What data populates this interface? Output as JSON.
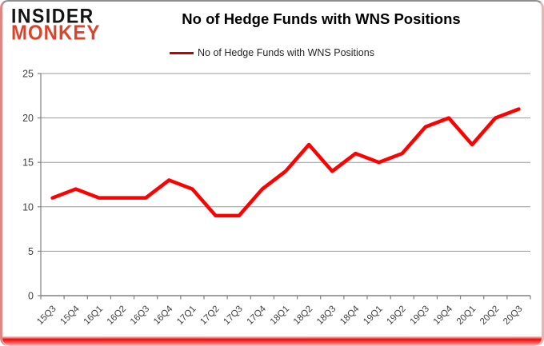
{
  "logo": {
    "line1": "INSIDER",
    "line2": "MONKEY",
    "monkey_color": "#d9452c",
    "insider_color": "#141414"
  },
  "header": {
    "title": "No of Hedge Funds with WNS Positions"
  },
  "legend": {
    "label": "No of Hedge Funds with WNS Positions"
  },
  "chart_data": {
    "type": "line",
    "title": "No of Hedge Funds with WNS Positions",
    "categories": [
      "15Q3",
      "15Q4",
      "16Q1",
      "16Q2",
      "16Q3",
      "16Q4",
      "17Q1",
      "17Q2",
      "17Q3",
      "17Q4",
      "18Q1",
      "18Q2",
      "18Q3",
      "18Q4",
      "19Q1",
      "19Q2",
      "19Q3",
      "19Q4",
      "20Q1",
      "20Q2",
      "20Q3"
    ],
    "series": [
      {
        "name": "No of Hedge Funds with WNS Positions",
        "values": [
          11,
          12,
          11,
          11,
          11,
          13,
          12,
          9,
          9,
          12,
          14,
          17,
          14,
          16,
          15,
          16,
          19,
          20,
          17,
          20,
          21
        ]
      }
    ],
    "xlabel": "",
    "ylabel": "",
    "ylim": [
      0,
      25
    ],
    "ytick_interval": 5,
    "yticks": [
      0,
      5,
      10,
      15,
      20,
      25
    ],
    "grid": true,
    "legend_position": "top"
  },
  "colors": {
    "line": "#fd0000",
    "legend_line": "#c60000",
    "grid": "#9a9a9a",
    "axis": "#808080",
    "tick_text": "#3f3f3f",
    "title_text": "#000000"
  }
}
